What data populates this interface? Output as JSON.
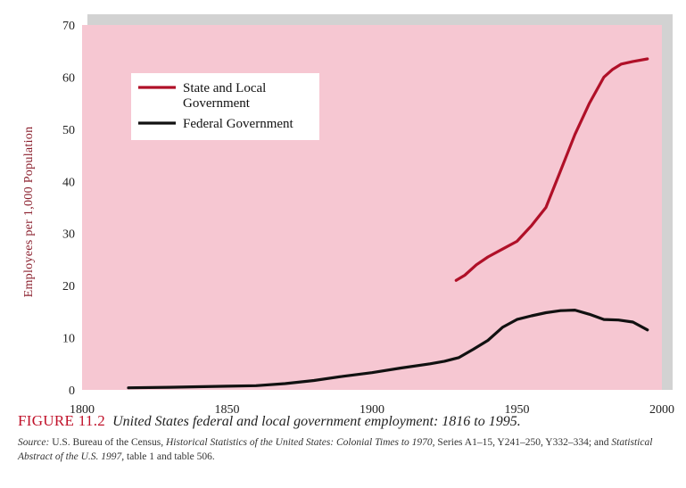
{
  "chart_data": {
    "type": "line",
    "ylabel": "Employees per 1,000 Population",
    "xlabel": "",
    "xlim": [
      1800,
      2000
    ],
    "ylim": [
      0,
      70
    ],
    "x_ticks": [
      "1800",
      "1850",
      "1900",
      "1950",
      "2000"
    ],
    "y_ticks": [
      "0",
      "10",
      "20",
      "30",
      "40",
      "50",
      "60",
      "70"
    ],
    "grid": false,
    "legend_position": "top-left",
    "series": [
      {
        "name": "State and Local Government",
        "color": "#b01028",
        "x": [
          1929,
          1932,
          1936,
          1940,
          1945,
          1950,
          1955,
          1960,
          1965,
          1970,
          1975,
          1980,
          1983,
          1986,
          1990,
          1995
        ],
        "y": [
          21.0,
          22.0,
          24.0,
          25.5,
          27.0,
          28.5,
          31.5,
          35.0,
          42.0,
          49.0,
          55.0,
          60.0,
          61.5,
          62.5,
          63.0,
          63.5
        ]
      },
      {
        "name": "Federal Government",
        "color": "#111111",
        "x": [
          1816,
          1830,
          1850,
          1860,
          1870,
          1880,
          1890,
          1900,
          1910,
          1920,
          1925,
          1930,
          1935,
          1940,
          1945,
          1950,
          1955,
          1960,
          1965,
          1970,
          1975,
          1980,
          1985,
          1990,
          1995
        ],
        "y": [
          0.4,
          0.5,
          0.7,
          0.8,
          1.2,
          1.8,
          2.6,
          3.3,
          4.2,
          5.0,
          5.5,
          6.2,
          7.8,
          9.5,
          12.0,
          13.5,
          14.2,
          14.8,
          15.2,
          15.3,
          14.5,
          13.5,
          13.4,
          13.0,
          11.5
        ]
      }
    ]
  },
  "legend": {
    "state_line1": "State and Local",
    "state_line2": "Government",
    "federal": "Federal Government"
  },
  "caption": {
    "figure_label": "FIGURE 11.2",
    "title": "United States federal and local government employment: 1816 to 1995.",
    "source_label": "Source:",
    "source_part1": "U.S. Bureau of the Census,",
    "source_italic1": "Historical Statistics of the United States: Colonial Times to 1970,",
    "source_part2": "Series A1–15, Y241–250, Y332–334; and",
    "source_italic2": "Statistical Abstract of the U.S. 1997,",
    "source_part3": "table 1 and table 506."
  },
  "colors": {
    "plot_background": "#f6c7d2",
    "shadow": "#d2d2d2"
  }
}
